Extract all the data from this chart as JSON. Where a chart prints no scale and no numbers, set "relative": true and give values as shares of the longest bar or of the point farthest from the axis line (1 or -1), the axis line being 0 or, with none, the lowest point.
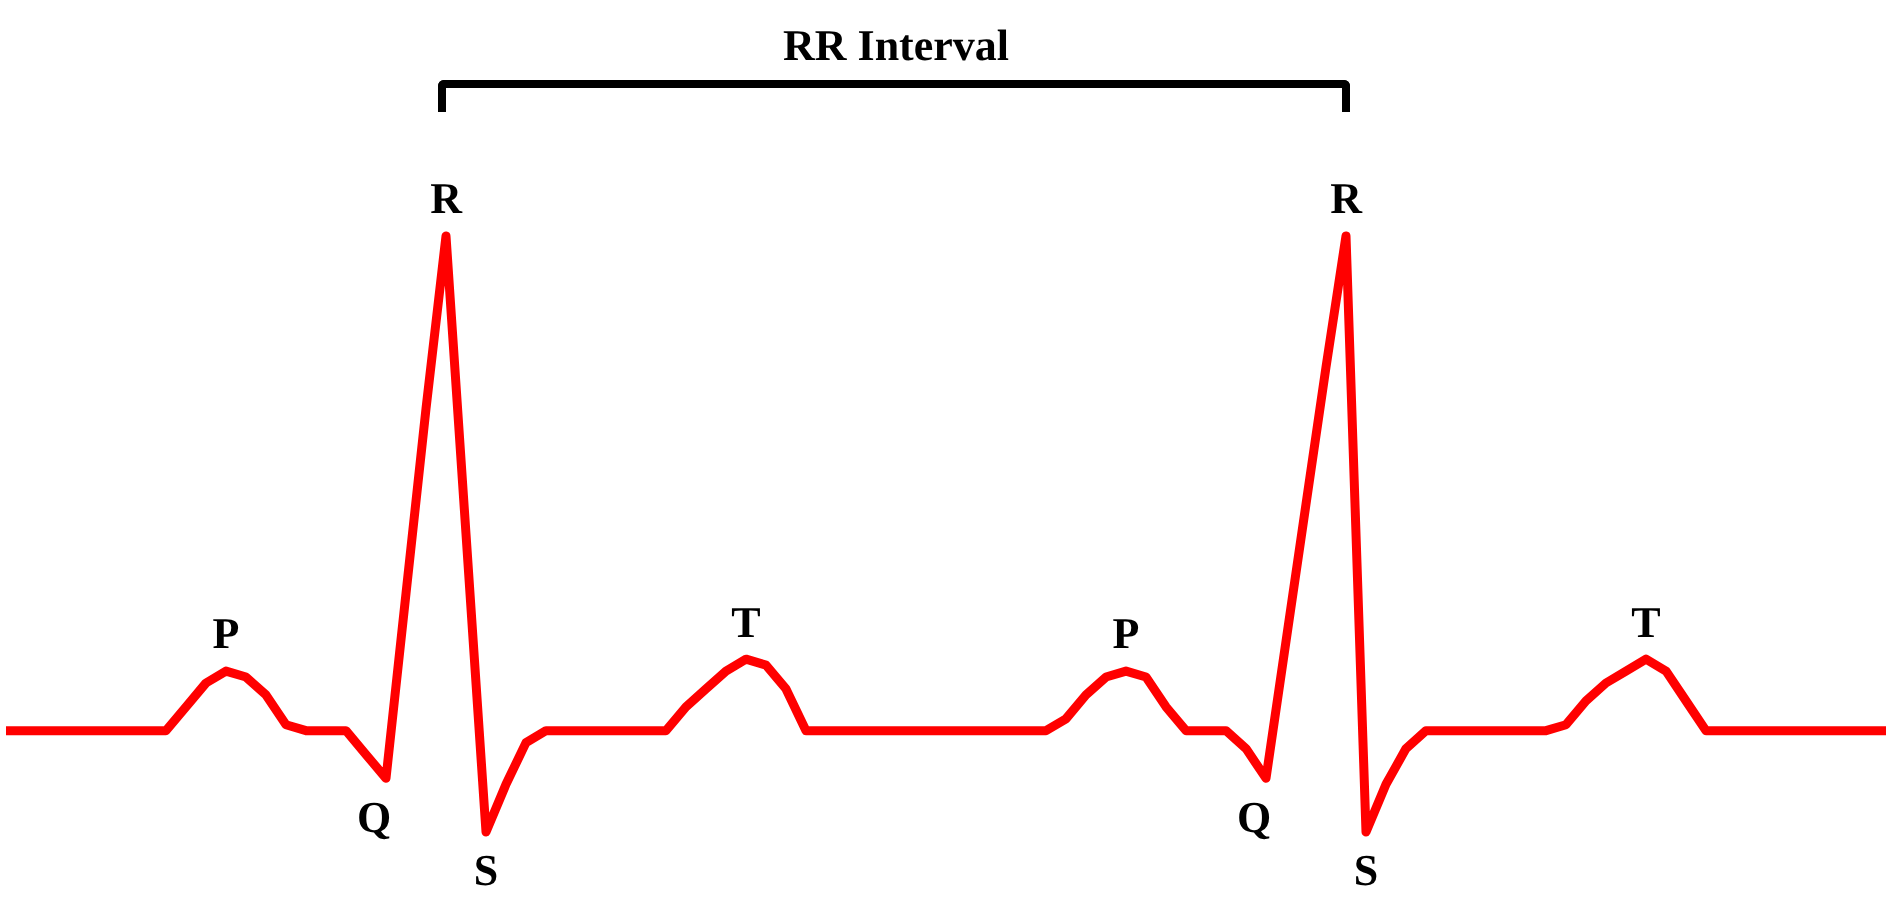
{
  "chart_data": {
    "type": "line",
    "relative": true,
    "tick_labels": false,
    "grid": false,
    "legend": false,
    "marker": "none",
    "line_style": "solid",
    "categories": [
      null,
      null,
      null,
      null,
      null,
      null,
      null,
      null,
      null,
      null,
      null,
      null,
      null,
      null,
      null,
      null,
      null,
      null,
      null,
      null,
      null,
      null,
      null,
      null,
      null,
      null,
      null,
      null,
      null,
      null,
      null,
      null,
      null,
      null,
      null,
      null,
      null,
      null,
      null,
      null,
      null,
      null,
      null,
      null,
      null,
      null,
      null,
      null,
      null,
      null,
      null,
      null,
      null,
      null,
      null,
      null,
      null,
      null,
      null,
      null,
      null,
      null,
      null,
      null,
      null,
      null,
      null,
      null,
      null,
      null,
      null,
      null,
      null,
      null,
      null,
      null,
      null,
      null,
      null,
      null,
      null,
      null,
      null,
      null,
      null,
      null,
      null,
      null,
      null,
      null,
      null,
      null,
      null,
      null,
      null
    ],
    "series": [
      {
        "color": "#ff0000",
        "values": [
          0.17,
          0.17,
          0.17,
          0.17,
          0.17,
          0.17,
          0.17,
          0.17,
          0.17,
          0.21,
          0.25,
          0.27,
          0.26,
          0.23,
          0.18,
          0.17,
          0.17,
          0.17,
          0.13,
          0.09,
          0.4,
          0.71,
          1,
          0.5,
          0,
          0.08,
          0.15,
          0.17,
          0.17,
          0.17,
          0.17,
          0.17,
          0.17,
          0.17,
          0.21,
          0.24,
          0.27,
          0.29,
          0.28,
          0.24,
          0.17,
          0.17,
          0.17,
          0.17,
          0.17,
          0.17,
          0.17,
          0.17,
          0.17,
          0.17,
          0.17,
          0.17,
          0.17,
          0.19,
          0.23,
          0.26,
          0.27,
          0.26,
          0.21,
          0.17,
          0.17,
          0.17,
          0.14,
          0.09,
          0.32,
          0.55,
          0.78,
          1,
          0,
          0.08,
          0.14,
          0.17,
          0.17,
          0.17,
          0.17,
          0.17,
          0.17,
          0.17,
          0.18,
          0.22,
          0.25,
          0.27,
          0.29,
          0.27,
          0.22,
          0.17,
          0.17,
          0.17,
          0.17,
          0.17,
          0.17,
          0.17,
          0.17,
          0.17,
          0.17
        ]
      }
    ],
    "annotations": [
      "RR Interval",
      "P",
      "Q",
      "R",
      "S",
      "T",
      "P",
      "Q",
      "R",
      "S",
      "T"
    ]
  }
}
